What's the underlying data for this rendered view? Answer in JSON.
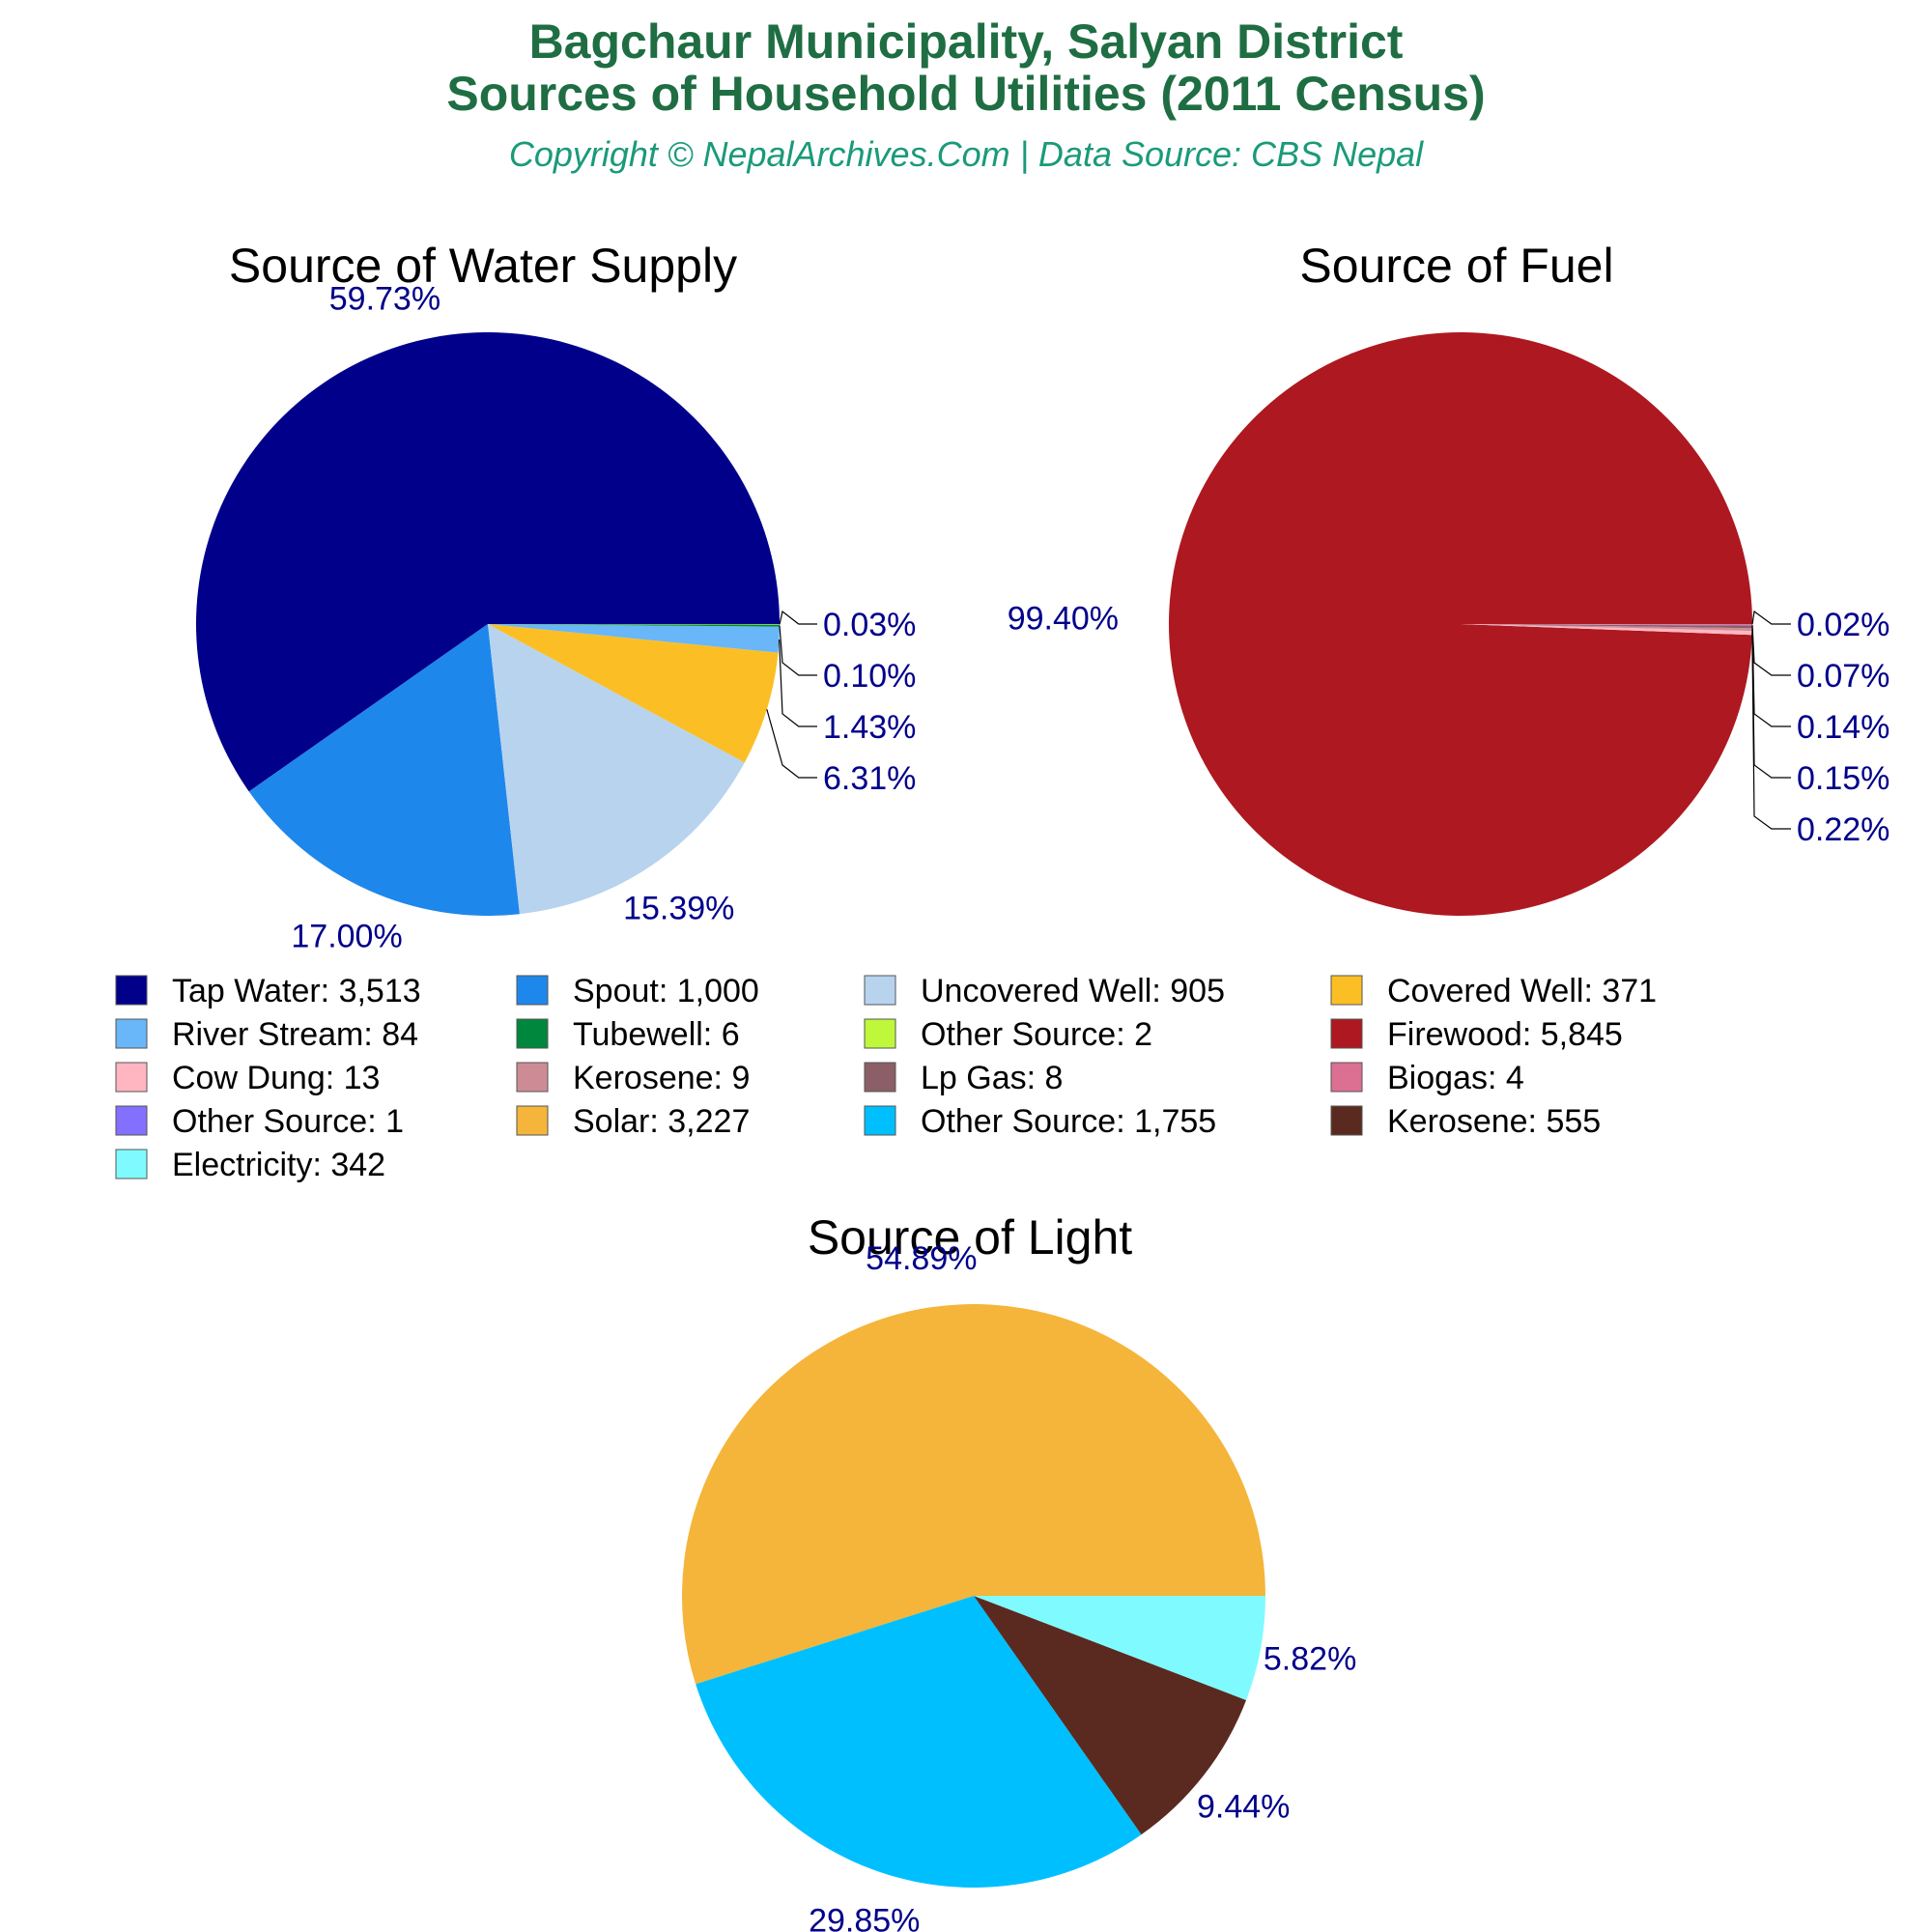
{
  "header": {
    "title_line1": "Bagchaur Municipality, Salyan District",
    "title_line2": "Sources of Household Utilities (2011 Census)",
    "subtitle": "Copyright © NepalArchives.Com | Data Source: CBS Nepal"
  },
  "chart_data": [
    {
      "type": "pie",
      "title": "Source of Water Supply",
      "slices": [
        {
          "label": "Tap Water",
          "value": 3513,
          "percent": "59.73%",
          "color": "#00008b"
        },
        {
          "label": "Spout",
          "value": 1000,
          "percent": "17.00%",
          "color": "#1e87eb"
        },
        {
          "label": "Uncovered Well",
          "value": 905,
          "percent": "15.39%",
          "color": "#b8d3ee"
        },
        {
          "label": "Covered Well",
          "value": 371,
          "percent": "6.31%",
          "color": "#fbbf25"
        },
        {
          "label": "River Stream",
          "value": 84,
          "percent": "1.43%",
          "color": "#69b6f8"
        },
        {
          "label": "Tubewell",
          "value": 6,
          "percent": "0.10%",
          "color": "#00873e"
        },
        {
          "label": "Other Source",
          "value": 2,
          "percent": "0.03%",
          "color": "#bff73b"
        }
      ]
    },
    {
      "type": "pie",
      "title": "Source of Fuel",
      "slices": [
        {
          "label": "Firewood",
          "value": 5845,
          "percent": "99.40%",
          "color": "#ae1820"
        },
        {
          "label": "Cow Dung",
          "value": 13,
          "percent": "0.22%",
          "color": "#ffb6c1"
        },
        {
          "label": "Kerosene",
          "value": 9,
          "percent": "0.15%",
          "color": "#cd8c95"
        },
        {
          "label": "Lp Gas",
          "value": 8,
          "percent": "0.14%",
          "color": "#8b5f65"
        },
        {
          "label": "Biogas",
          "value": 4,
          "percent": "0.07%",
          "color": "#db7093"
        },
        {
          "label": "Other Source",
          "value": 1,
          "percent": "0.02%",
          "color": "#8470ff"
        }
      ]
    },
    {
      "type": "pie",
      "title": "Source of Light",
      "slices": [
        {
          "label": "Solar",
          "value": 3227,
          "percent": "54.89%",
          "color": "#f4b53a"
        },
        {
          "label": "Other Source",
          "value": 1755,
          "percent": "29.85%",
          "color": "#00bfff"
        },
        {
          "label": "Kerosene",
          "value": 555,
          "percent": "9.44%",
          "color": "#5a2a20"
        },
        {
          "label": "Electricity",
          "value": 342,
          "percent": "5.82%",
          "color": "#7ffbff"
        }
      ]
    }
  ],
  "legend": {
    "items": [
      {
        "text": "Tap Water: 3,513",
        "color": "#00008b"
      },
      {
        "text": "Spout: 1,000",
        "color": "#1e87eb"
      },
      {
        "text": "Uncovered Well: 905",
        "color": "#b8d3ee"
      },
      {
        "text": "Covered Well: 371",
        "color": "#fbbf25"
      },
      {
        "text": "River Stream: 84",
        "color": "#69b6f8"
      },
      {
        "text": "Tubewell: 6",
        "color": "#00873e"
      },
      {
        "text": "Other Source: 2",
        "color": "#bff73b"
      },
      {
        "text": "Firewood: 5,845",
        "color": "#ae1820"
      },
      {
        "text": "Cow Dung: 13",
        "color": "#ffb6c1"
      },
      {
        "text": "Kerosene: 9",
        "color": "#cd8c95"
      },
      {
        "text": "Lp Gas: 8",
        "color": "#8b5f65"
      },
      {
        "text": "Biogas: 4",
        "color": "#db7093"
      },
      {
        "text": "Other Source: 1",
        "color": "#8470ff"
      },
      {
        "text": "Solar: 3,227",
        "color": "#f4b53a"
      },
      {
        "text": "Other Source: 1,755",
        "color": "#00bfff"
      },
      {
        "text": "Kerosene: 555",
        "color": "#5a2a20"
      },
      {
        "text": "Electricity: 342",
        "color": "#7ffbff"
      }
    ]
  }
}
